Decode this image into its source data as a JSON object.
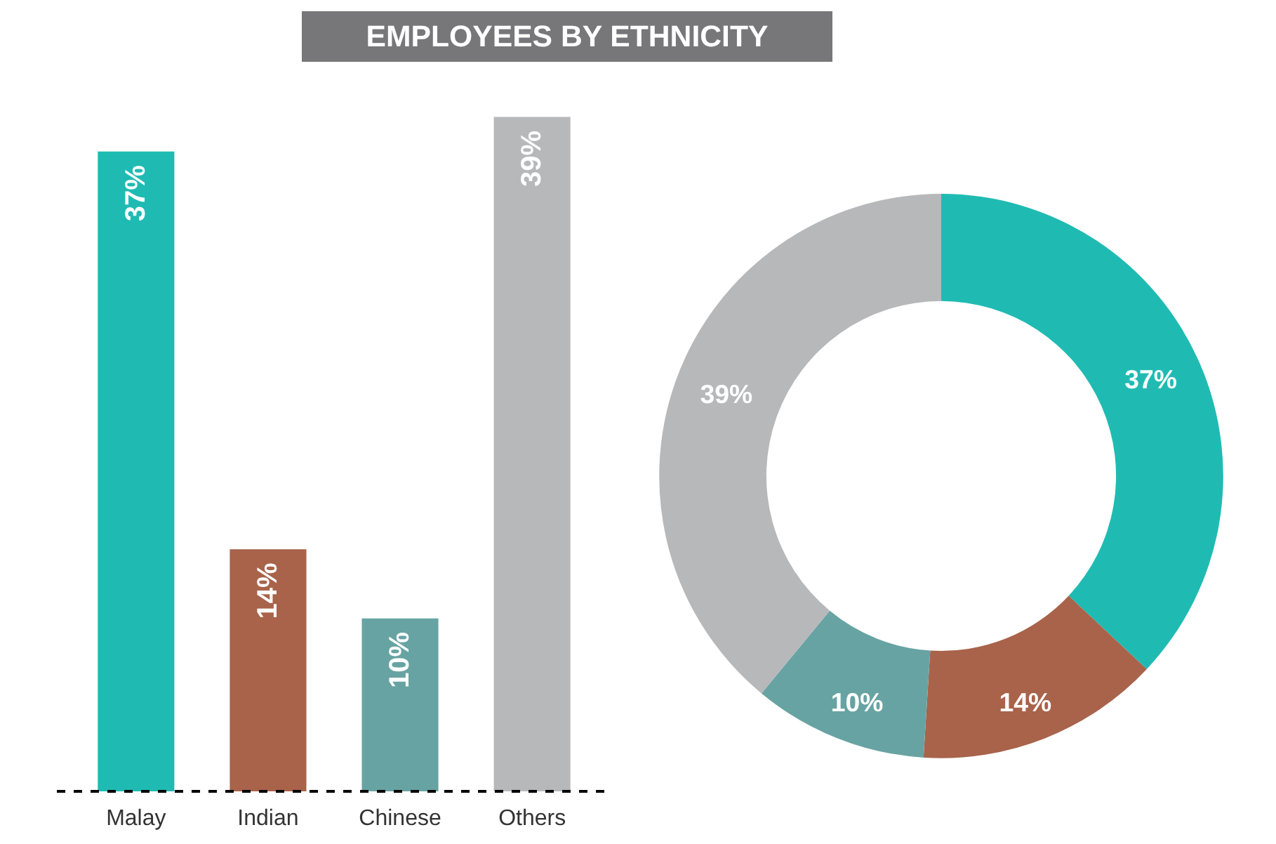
{
  "chart_data": [
    {
      "type": "bar",
      "title": "EMPLOYEES BY ETHNICITY",
      "categories": [
        "Malay",
        "Indian",
        "Chinese",
        "Others"
      ],
      "values": [
        37,
        14,
        10,
        39
      ],
      "colors": [
        "#1fbbb3",
        "#a8634a",
        "#68a3a3",
        "#b7b8ba"
      ],
      "value_labels": [
        "37%",
        "14%",
        "10%",
        "39%"
      ],
      "tick_labels": "x"
    },
    {
      "type": "donut",
      "categories": [
        null,
        null,
        null,
        null
      ],
      "values": [
        37,
        14,
        10,
        39
      ],
      "colors": [
        "#1fbbb3",
        "#a8634a",
        "#68a3a3",
        "#b7b8ba"
      ],
      "value_labels": [
        "37%",
        "14%",
        "10%",
        "39%"
      ]
    }
  ]
}
